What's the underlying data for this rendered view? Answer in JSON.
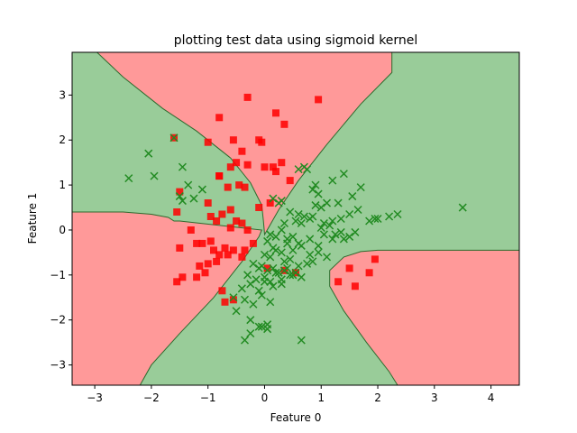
{
  "chart_data": {
    "type": "scatter",
    "title": "plotting test data using sigmoid kernel",
    "xlabel": "Feature 0",
    "ylabel": "Feature 1",
    "xlim": [
      -3.4,
      4.5
    ],
    "ylim": [
      -3.45,
      3.95
    ],
    "xticks": [
      -3,
      -2,
      -1,
      0,
      1,
      2,
      3,
      4
    ],
    "yticks": [
      -3,
      -2,
      -1,
      0,
      1,
      2,
      3
    ],
    "grid": false,
    "legend": "none",
    "colors": {
      "region_red": "#ff9999",
      "region_green": "#99cc99",
      "boundary": "#2d6a2d",
      "class0_marker": "#ff0000",
      "class1_marker": "#228b22"
    },
    "decision_regions": {
      "red": [
        [
          [
            -2.96,
            3.95
          ],
          [
            -2.5,
            3.4
          ],
          [
            -1.8,
            2.7
          ],
          [
            -1.2,
            2.2
          ],
          [
            -0.6,
            1.6
          ],
          [
            -0.25,
            1.05
          ],
          [
            -0.05,
            0.55
          ],
          [
            -0.02,
            0.2
          ],
          [
            0.0,
            -0.1
          ],
          [
            0.25,
            0.45
          ],
          [
            0.6,
            1.1
          ],
          [
            1.1,
            1.9
          ],
          [
            1.7,
            2.8
          ],
          [
            2.25,
            3.5
          ],
          [
            2.25,
            3.95
          ]
        ],
        [
          [
            -3.4,
            0.4
          ],
          [
            -2.5,
            0.4
          ],
          [
            -2.0,
            0.35
          ],
          [
            -1.7,
            0.28
          ],
          [
            -1.6,
            0.2
          ],
          [
            -1.5,
            0.2
          ],
          [
            -0.05,
            0.0
          ],
          [
            -0.1,
            -0.15
          ],
          [
            -0.4,
            -0.7
          ],
          [
            -0.9,
            -1.5
          ],
          [
            -1.5,
            -2.3
          ],
          [
            -2.0,
            -3.0
          ],
          [
            -2.2,
            -3.45
          ],
          [
            -3.4,
            -3.45
          ]
        ],
        [
          [
            4.5,
            -0.45
          ],
          [
            3.5,
            -0.45
          ],
          [
            2.8,
            -0.45
          ],
          [
            2.0,
            -0.45
          ],
          [
            1.7,
            -0.48
          ],
          [
            1.4,
            -0.6
          ],
          [
            1.15,
            -0.9
          ],
          [
            1.15,
            -1.25
          ],
          [
            1.4,
            -1.8
          ],
          [
            1.8,
            -2.5
          ],
          [
            2.2,
            -3.15
          ],
          [
            2.35,
            -3.45
          ],
          [
            4.5,
            -3.45
          ]
        ]
      ]
    },
    "series": [
      {
        "class": 0,
        "marker": "square",
        "x": [
          -0.3,
          0.95,
          -0.8,
          -1.0,
          -0.55,
          0.2,
          0.35,
          -0.4,
          -0.1,
          -0.05,
          -1.6,
          -0.6,
          -0.5,
          -0.3,
          0.0,
          0.3,
          -0.8,
          -0.65,
          -0.45,
          -0.35,
          0.15,
          0.2,
          -0.8,
          -0.6,
          -0.1,
          0.1,
          0.45,
          -1.5,
          -1.0,
          -0.95,
          -0.85,
          -0.75,
          -0.6,
          -0.5,
          -0.4,
          -0.3,
          -0.2,
          -1.55,
          -1.3,
          -1.1,
          -0.95,
          -0.7,
          -0.55,
          -1.5,
          -1.2,
          -0.9,
          -0.8,
          -0.65,
          -0.4,
          -0.35,
          -1.15,
          -1.0,
          -0.85,
          -1.05,
          -1.2,
          -1.45,
          -1.55,
          -0.75,
          -0.7,
          -0.55,
          0.05,
          0.35,
          0.55,
          1.3,
          1.5,
          1.6,
          1.85,
          1.95
        ],
        "y": [
          2.95,
          2.9,
          2.5,
          1.95,
          2.0,
          2.6,
          2.35,
          1.75,
          2.0,
          1.95,
          2.05,
          1.4,
          1.5,
          1.45,
          1.4,
          1.5,
          1.2,
          0.95,
          1.0,
          0.95,
          1.4,
          1.3,
          1.2,
          0.45,
          0.5,
          0.6,
          1.1,
          0.85,
          0.6,
          0.3,
          0.2,
          0.35,
          0.05,
          0.2,
          0.15,
          0.0,
          -0.3,
          0.4,
          0.0,
          -0.3,
          -0.25,
          -0.4,
          -0.45,
          -0.4,
          -0.3,
          -0.45,
          -0.55,
          -0.55,
          -0.6,
          -0.45,
          -0.8,
          -0.75,
          -0.7,
          -0.95,
          -1.05,
          -1.05,
          -1.15,
          -1.35,
          -1.6,
          -1.55,
          -0.85,
          -0.9,
          -0.95,
          -1.15,
          -0.85,
          -1.25,
          -0.95,
          -0.65
        ]
      },
      {
        "class": 1,
        "marker": "x",
        "x": [
          -1.6,
          -2.05,
          -2.4,
          -1.95,
          -1.45,
          -1.35,
          -1.5,
          -1.1,
          -1.25,
          -1.45,
          0.6,
          0.7,
          0.75,
          0.9,
          1.2,
          1.3,
          1.4,
          1.55,
          1.7,
          1.95,
          2.35,
          3.5,
          0.85,
          0.95,
          1.0,
          1.1,
          0.6,
          0.7,
          0.8,
          0.9,
          1.05,
          1.2,
          1.35,
          1.5,
          1.65,
          1.85,
          2.0,
          2.2,
          0.15,
          0.25,
          0.3,
          0.35,
          0.45,
          0.55,
          0.65,
          0.85,
          1.0,
          1.15,
          1.25,
          1.4,
          1.6,
          0.05,
          0.1,
          0.2,
          0.3,
          0.4,
          0.5,
          0.6,
          0.8,
          0.95,
          1.05,
          1.2,
          1.35,
          1.5,
          0.15,
          0.3,
          0.4,
          0.5,
          0.65,
          0.8,
          0.95,
          1.1,
          0.0,
          0.1,
          0.2,
          0.35,
          0.45,
          0.6,
          0.75,
          0.85,
          -0.2,
          -0.1,
          -0.05,
          0.05,
          0.15,
          0.25,
          0.35,
          0.45,
          0.55,
          0.65,
          -0.3,
          -0.15,
          0.0,
          0.1,
          0.2,
          0.3,
          0.4,
          0.5,
          -0.4,
          -0.25,
          -0.1,
          0.0,
          0.15,
          0.3,
          -0.55,
          -0.35,
          -0.2,
          -0.05,
          0.1,
          -0.5,
          -0.25,
          -0.1,
          0.05,
          -0.35,
          -0.25,
          -0.05,
          0.05,
          0.65
        ],
        "y": [
          2.05,
          1.7,
          1.15,
          1.2,
          1.4,
          1.0,
          0.75,
          0.9,
          0.7,
          0.65,
          1.35,
          1.4,
          1.35,
          1.0,
          1.1,
          0.6,
          1.25,
          0.75,
          0.95,
          0.25,
          0.35,
          0.5,
          0.9,
          0.8,
          0.5,
          0.6,
          0.35,
          0.3,
          0.25,
          0.55,
          0.15,
          0.2,
          0.25,
          0.35,
          0.45,
          0.2,
          0.25,
          0.3,
          0.7,
          0.6,
          0.65,
          0.15,
          0.4,
          0.2,
          0.15,
          0.3,
          0.05,
          0.1,
          -0.1,
          -0.2,
          -0.05,
          -0.25,
          -0.1,
          -0.15,
          0.0,
          -0.2,
          -0.15,
          -0.3,
          -0.2,
          -0.35,
          -0.1,
          -0.2,
          -0.05,
          -0.15,
          -0.4,
          -0.5,
          -0.3,
          -0.45,
          -0.35,
          -0.55,
          -0.5,
          -0.6,
          -0.55,
          -0.6,
          -0.45,
          -0.7,
          -0.65,
          -0.8,
          -0.75,
          -0.7,
          -0.75,
          -0.85,
          -0.8,
          -0.9,
          -0.85,
          -0.95,
          -0.9,
          -1.0,
          -0.95,
          -1.05,
          -1.0,
          -1.1,
          -1.05,
          -1.15,
          -0.95,
          -1.2,
          -0.85,
          -1.0,
          -1.3,
          -1.2,
          -1.35,
          -1.15,
          -1.25,
          -1.1,
          -1.5,
          -1.55,
          -1.65,
          -1.45,
          -1.6,
          -1.8,
          -2.0,
          -2.15,
          -2.2,
          -2.45,
          -2.3,
          -2.15,
          -2.1,
          -2.45
        ]
      }
    ]
  }
}
